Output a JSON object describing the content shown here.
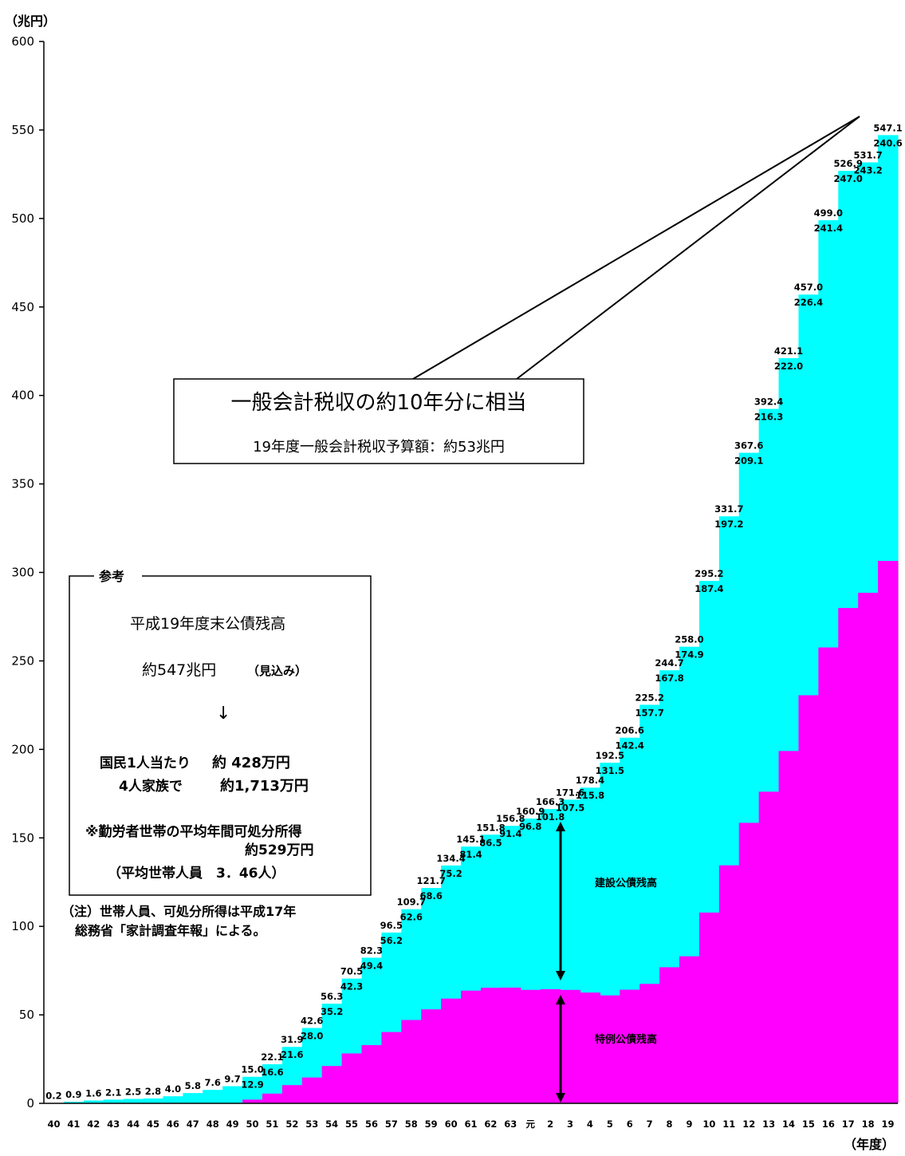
{
  "chart_data": {
    "type": "area",
    "ylabel": "（兆円）",
    "xlabel": "（年度）",
    "ylim": [
      0,
      600
    ],
    "yticks": [
      0,
      50,
      100,
      150,
      200,
      250,
      300,
      350,
      400,
      450,
      500,
      550,
      600
    ],
    "categories": [
      "40",
      "41",
      "42",
      "43",
      "44",
      "45",
      "46",
      "47",
      "48",
      "49",
      "50",
      "51",
      "52",
      "53",
      "54",
      "55",
      "56",
      "57",
      "58",
      "59",
      "60",
      "61",
      "62",
      "63",
      "元",
      "2",
      "3",
      "4",
      "5",
      "6",
      "7",
      "8",
      "9",
      "10",
      "11",
      "12",
      "13",
      "14",
      "15",
      "16",
      "17",
      "18",
      "19"
    ],
    "total_labels": [
      "0.2",
      "0.9",
      "1.6",
      "2.1",
      "2.5",
      "2.8",
      "4.0",
      "5.8",
      "7.6",
      "9.7",
      "15.0",
      "22.1",
      "31.9",
      "42.6",
      "56.3",
      "70.5",
      "82.3",
      "96.5",
      "109.7",
      "121.7",
      "134.4",
      "145.1",
      "151.8",
      "156.8",
      "160.9",
      "166.3",
      "171.6",
      "178.4",
      "192.5",
      "206.6",
      "225.2",
      "244.7",
      "258.0",
      "295.2",
      "331.7",
      "367.6",
      "392.4",
      "421.1",
      "457.0",
      "499.0",
      "526.9",
      "531.7",
      "547.1"
    ],
    "construction_labels": [
      "",
      "",
      "",
      "",
      "",
      "",
      "",
      "",
      "",
      "",
      "12.9",
      "16.6",
      "21.6",
      "28.0",
      "35.2",
      "42.3",
      "49.4",
      "56.2",
      "62.6",
      "68.6",
      "75.2",
      "81.4",
      "86.5",
      "91.4",
      "96.8",
      "101.8",
      "107.5",
      "115.8",
      "131.5",
      "142.4",
      "157.7",
      "167.8",
      "174.9",
      "187.4",
      "197.2",
      "209.1",
      "216.3",
      "222.0",
      "226.4",
      "241.4",
      "247.0",
      "243.2",
      "240.6"
    ],
    "series": [
      {
        "name": "建設公債残高",
        "color": "#00ffff"
      },
      {
        "name": "特例公債残高",
        "color": "#ff00ff"
      }
    ],
    "total": [
      0.2,
      0.9,
      1.6,
      2.1,
      2.5,
      2.8,
      4.0,
      5.8,
      7.6,
      9.7,
      15.0,
      22.1,
      31.9,
      42.6,
      56.3,
      70.5,
      82.3,
      96.5,
      109.7,
      121.7,
      134.4,
      145.1,
      151.8,
      156.8,
      160.9,
      166.3,
      171.6,
      178.4,
      192.5,
      206.6,
      225.2,
      244.7,
      258.0,
      295.2,
      331.7,
      367.6,
      392.4,
      421.1,
      457.0,
      499.0,
      526.9,
      531.7,
      547.1
    ]
  },
  "callout": {
    "title": "一般会計税収の約10年分に相当",
    "subtitle": "19年度一般会計税収予算額：約53兆円"
  },
  "reference": {
    "header": "参考",
    "line1": "平成19年度末公債残高",
    "line2a": "約547兆円",
    "line2b": "（見込み）",
    "arrow": "↓",
    "line3a": "国民1人当たり",
    "line3b": "約  428万円",
    "line4a": "4人家族で",
    "line4b": "約1,713万円",
    "line5": "※勤労者世帯の平均年間可処分所得",
    "line6": "約529万円",
    "line7": "（平均世帯人員　3．46人）"
  },
  "note": {
    "line1": "（注）世帯人員、可処分所得は平成17年",
    "line2": "総務省「家計調査年報」による。"
  }
}
